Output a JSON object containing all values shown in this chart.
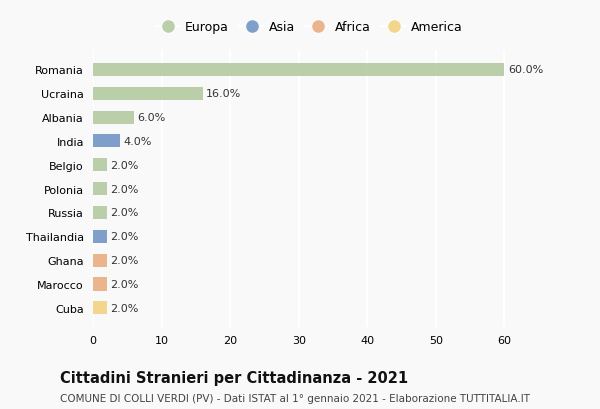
{
  "countries": [
    "Cuba",
    "Marocco",
    "Ghana",
    "Thailandia",
    "Russia",
    "Polonia",
    "Belgio",
    "India",
    "Albania",
    "Ucraina",
    "Romania"
  ],
  "values": [
    2.0,
    2.0,
    2.0,
    2.0,
    2.0,
    2.0,
    2.0,
    4.0,
    6.0,
    16.0,
    60.0
  ],
  "bar_colors": [
    "#f2d07a",
    "#e8a97a",
    "#e8a97a",
    "#6a8fc2",
    "#aec79b",
    "#aec79b",
    "#aec79b",
    "#6a8fc2",
    "#aec79b",
    "#aec79b",
    "#aec79b"
  ],
  "xlim": [
    0,
    63
  ],
  "xticks": [
    0,
    10,
    20,
    30,
    40,
    50,
    60
  ],
  "title": "Cittadini Stranieri per Cittadinanza - 2021",
  "subtitle": "COMUNE DI COLLI VERDI (PV) - Dati ISTAT al 1° gennaio 2021 - Elaborazione TUTTITALIA.IT",
  "legend_labels": [
    "Europa",
    "Asia",
    "Africa",
    "America"
  ],
  "legend_colors": [
    "#aec79b",
    "#6a8fc2",
    "#e8a97a",
    "#f2d07a"
  ],
  "background_color": "#f9f9f9",
  "title_fontsize": 10.5,
  "subtitle_fontsize": 7.5,
  "label_fontsize": 8,
  "tick_fontsize": 8,
  "bar_height": 0.55
}
